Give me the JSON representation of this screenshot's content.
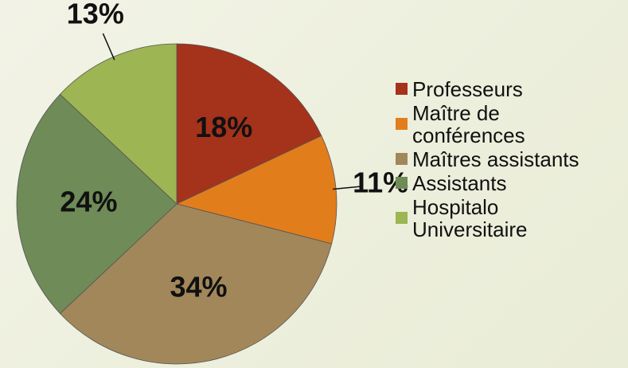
{
  "chart_data": {
    "type": "pie",
    "categories": [
      "Professeurs",
      "Maître de conférences",
      "Maîtres assistants",
      "Assistants",
      "Hospitalo Universitaire"
    ],
    "values": [
      18,
      11,
      34,
      24,
      13
    ],
    "value_labels": [
      "18%",
      "11%",
      "34%",
      "24%",
      "13%"
    ],
    "colors": [
      "#a5321b",
      "#e27d1c",
      "#a2875a",
      "#6f8b57",
      "#9db552"
    ],
    "legend": "right"
  }
}
